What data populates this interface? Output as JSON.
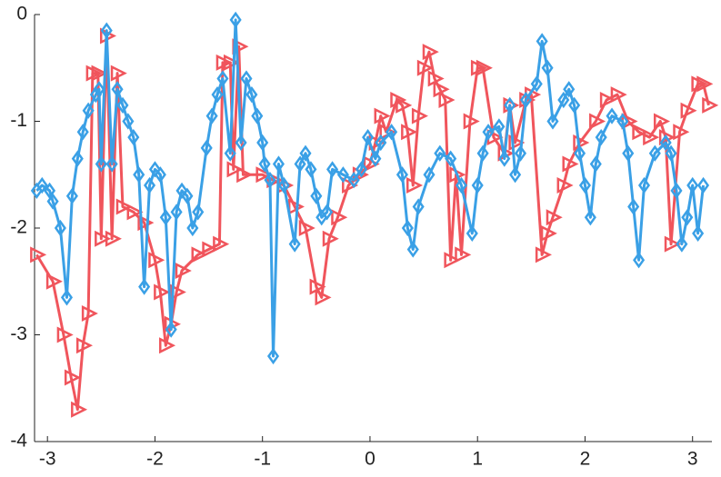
{
  "chart_data": {
    "type": "line",
    "xlim": [
      -3.12,
      3.18
    ],
    "ylim": [
      -4,
      0
    ],
    "xticks": [
      -3,
      -2,
      -1,
      0,
      1,
      2,
      3
    ],
    "yticks": [
      -4,
      -3,
      -2,
      -1,
      0
    ],
    "series": [
      {
        "color": "#f0555c",
        "marker": "triangle-right",
        "x": [
          -3.1,
          -2.95,
          -2.85,
          -2.78,
          -2.72,
          -2.67,
          -2.62,
          -2.58,
          -2.53,
          -2.5,
          -2.45,
          -2.4,
          -2.35,
          -2.3,
          -2.2,
          -2.1,
          -2.0,
          -1.95,
          -1.9,
          -1.85,
          -1.8,
          -1.75,
          -1.6,
          -1.5,
          -1.4,
          -1.37,
          -1.3,
          -1.27,
          -1.22,
          -1.18,
          -1.0,
          -0.9,
          -0.8,
          -0.7,
          -0.6,
          -0.5,
          -0.45,
          -0.38,
          -0.3,
          -0.2,
          -0.1,
          0.0,
          0.05,
          0.1,
          0.15,
          0.25,
          0.3,
          0.35,
          0.4,
          0.45,
          0.5,
          0.55,
          0.6,
          0.65,
          0.7,
          0.75,
          0.8,
          0.85,
          0.93,
          1.0,
          1.05,
          1.15,
          1.25,
          1.3,
          1.35,
          1.45,
          1.5,
          1.6,
          1.65,
          1.7,
          1.8,
          1.85,
          1.95,
          2.1,
          2.2,
          2.3,
          2.4,
          2.5,
          2.6,
          2.7,
          2.75,
          2.8,
          2.88,
          2.95,
          3.05,
          3.1,
          3.15
        ],
        "values": [
          -2.25,
          -2.5,
          -3.0,
          -3.4,
          -3.7,
          -3.1,
          -2.8,
          -0.55,
          -0.55,
          -2.1,
          -0.2,
          -2.1,
          -0.55,
          -1.8,
          -1.85,
          -1.95,
          -2.3,
          -2.6,
          -3.1,
          -2.9,
          -2.6,
          -2.4,
          -2.25,
          -2.2,
          -2.15,
          -0.45,
          -0.45,
          -1.45,
          -0.3,
          -1.5,
          -1.5,
          -1.55,
          -1.6,
          -1.8,
          -2.0,
          -2.55,
          -2.65,
          -2.1,
          -1.9,
          -1.6,
          -1.5,
          -1.4,
          -1.2,
          -0.95,
          -1.1,
          -0.8,
          -0.85,
          -1.1,
          -1.6,
          -0.95,
          -0.5,
          -0.35,
          -0.6,
          -0.7,
          -0.8,
          -2.3,
          -1.5,
          -2.25,
          -1.0,
          -0.5,
          -0.5,
          -1.15,
          -1.3,
          -0.85,
          -1.2,
          -0.8,
          -0.75,
          -2.25,
          -2.05,
          -1.9,
          -1.6,
          -1.4,
          -1.2,
          -1.0,
          -0.8,
          -0.75,
          -1.0,
          -1.1,
          -1.15,
          -1.0,
          -1.15,
          -2.15,
          -1.1,
          -0.9,
          -0.65,
          -0.65,
          -0.85
        ]
      },
      {
        "color": "#3aa0e6",
        "marker": "diamond",
        "x": [
          -3.1,
          -3.05,
          -2.98,
          -2.95,
          -2.88,
          -2.82,
          -2.77,
          -2.72,
          -2.67,
          -2.62,
          -2.55,
          -2.52,
          -2.5,
          -2.45,
          -2.4,
          -2.35,
          -2.3,
          -2.25,
          -2.2,
          -2.15,
          -2.1,
          -2.05,
          -2.0,
          -1.95,
          -1.9,
          -1.85,
          -1.8,
          -1.75,
          -1.7,
          -1.65,
          -1.6,
          -1.52,
          -1.47,
          -1.42,
          -1.37,
          -1.3,
          -1.25,
          -1.2,
          -1.15,
          -1.1,
          -1.05,
          -1.0,
          -0.98,
          -0.93,
          -0.9,
          -0.85,
          -0.8,
          -0.7,
          -0.65,
          -0.6,
          -0.55,
          -0.5,
          -0.45,
          -0.4,
          -0.35,
          -0.25,
          -0.15,
          -0.08,
          -0.02,
          0.05,
          0.1,
          0.2,
          0.3,
          0.35,
          0.4,
          0.45,
          0.55,
          0.65,
          0.75,
          0.85,
          0.95,
          1.0,
          1.05,
          1.1,
          1.2,
          1.25,
          1.3,
          1.35,
          1.4,
          1.45,
          1.55,
          1.6,
          1.65,
          1.7,
          1.8,
          1.85,
          1.9,
          1.95,
          2.0,
          2.05,
          2.1,
          2.15,
          2.25,
          2.35,
          2.4,
          2.45,
          2.5,
          2.55,
          2.65,
          2.75,
          2.8,
          2.85,
          2.9,
          2.95,
          3.0,
          3.05,
          3.1
        ],
        "values": [
          -1.65,
          -1.6,
          -1.65,
          -1.75,
          -2.0,
          -2.65,
          -1.7,
          -1.35,
          -1.1,
          -0.9,
          -0.75,
          -0.7,
          -1.4,
          -0.15,
          -1.4,
          -0.7,
          -0.85,
          -1.0,
          -1.15,
          -1.5,
          -2.55,
          -1.6,
          -1.45,
          -1.5,
          -1.9,
          -2.95,
          -1.85,
          -1.65,
          -1.7,
          -2.0,
          -1.85,
          -1.25,
          -0.95,
          -0.75,
          -0.6,
          -1.3,
          -0.05,
          -1.2,
          -0.6,
          -0.75,
          -0.95,
          -1.2,
          -1.4,
          -1.55,
          -3.2,
          -1.4,
          -1.6,
          -2.15,
          -1.4,
          -1.3,
          -1.45,
          -1.7,
          -1.9,
          -1.85,
          -1.45,
          -1.5,
          -1.55,
          -1.45,
          -1.15,
          -1.35,
          -1.2,
          -1.1,
          -1.5,
          -2.0,
          -2.2,
          -1.8,
          -1.5,
          -1.3,
          -1.35,
          -1.6,
          -2.05,
          -1.6,
          -1.3,
          -1.1,
          -1.05,
          -1.35,
          -0.85,
          -1.5,
          -1.3,
          -0.8,
          -0.65,
          -0.25,
          -0.5,
          -1.0,
          -0.8,
          -0.7,
          -0.85,
          -1.3,
          -1.6,
          -1.9,
          -1.4,
          -1.15,
          -0.95,
          -1.0,
          -1.3,
          -1.8,
          -2.3,
          -1.6,
          -1.3,
          -1.2,
          -1.3,
          -1.65,
          -2.15,
          -1.9,
          -1.6,
          -2.05,
          -1.6
        ]
      }
    ]
  }
}
